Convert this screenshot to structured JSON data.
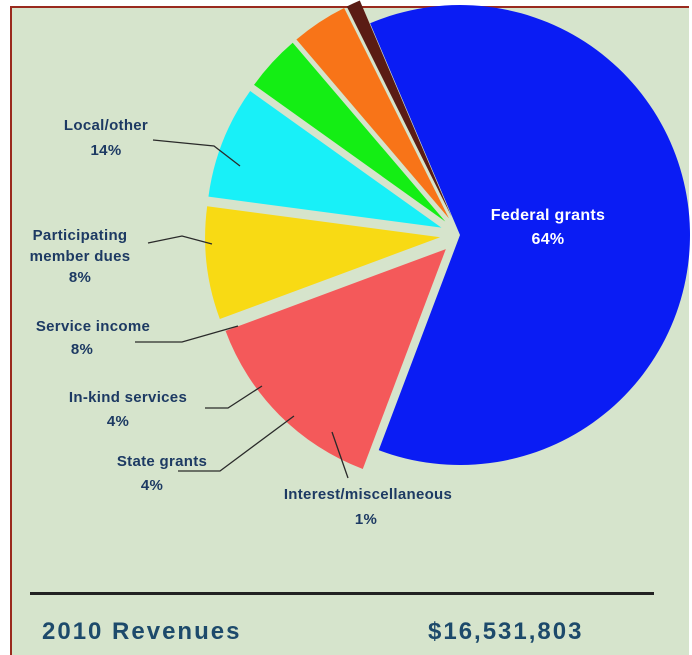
{
  "chart_data": {
    "type": "pie",
    "slices": [
      {
        "label": "Federal grants",
        "percent": "64%",
        "value": 64,
        "color": "#0a1cf4",
        "exploded": false
      },
      {
        "label": "Local/other",
        "percent": "14%",
        "value": 14,
        "color": "#f4595a",
        "exploded": true
      },
      {
        "label": "Participating member dues",
        "percent": "8%",
        "value": 8,
        "color": "#f8da14",
        "exploded": true
      },
      {
        "label": "Service income",
        "percent": "8%",
        "value": 8,
        "color": "#18f0f8",
        "exploded": true
      },
      {
        "label": "In-kind services",
        "percent": "4%",
        "value": 4,
        "color": "#14ee14",
        "exploded": true
      },
      {
        "label": "State grants",
        "percent": "4%",
        "value": 4,
        "color": "#f87418",
        "exploded": true
      },
      {
        "label": "Interest/miscellaneous",
        "percent": "1%",
        "value": 1,
        "color": "#5a1c14",
        "exploded": true
      }
    ]
  },
  "labels": {
    "federal": {
      "name": "Federal grants",
      "pct": "64%"
    },
    "local": {
      "name": "Local/other",
      "pct": "14%"
    },
    "dues": {
      "line1": "Participating",
      "line2": "member dues",
      "pct": "8%"
    },
    "service": {
      "name": "Service income",
      "pct": "8%"
    },
    "inkind": {
      "name": "In-kind services",
      "pct": "4%"
    },
    "state": {
      "name": "State grants",
      "pct": "4%"
    },
    "interest": {
      "name": "Interest/miscellaneous",
      "pct": "1%"
    }
  },
  "footer": {
    "title": "2010 Revenues",
    "total": "$16,531,803"
  }
}
